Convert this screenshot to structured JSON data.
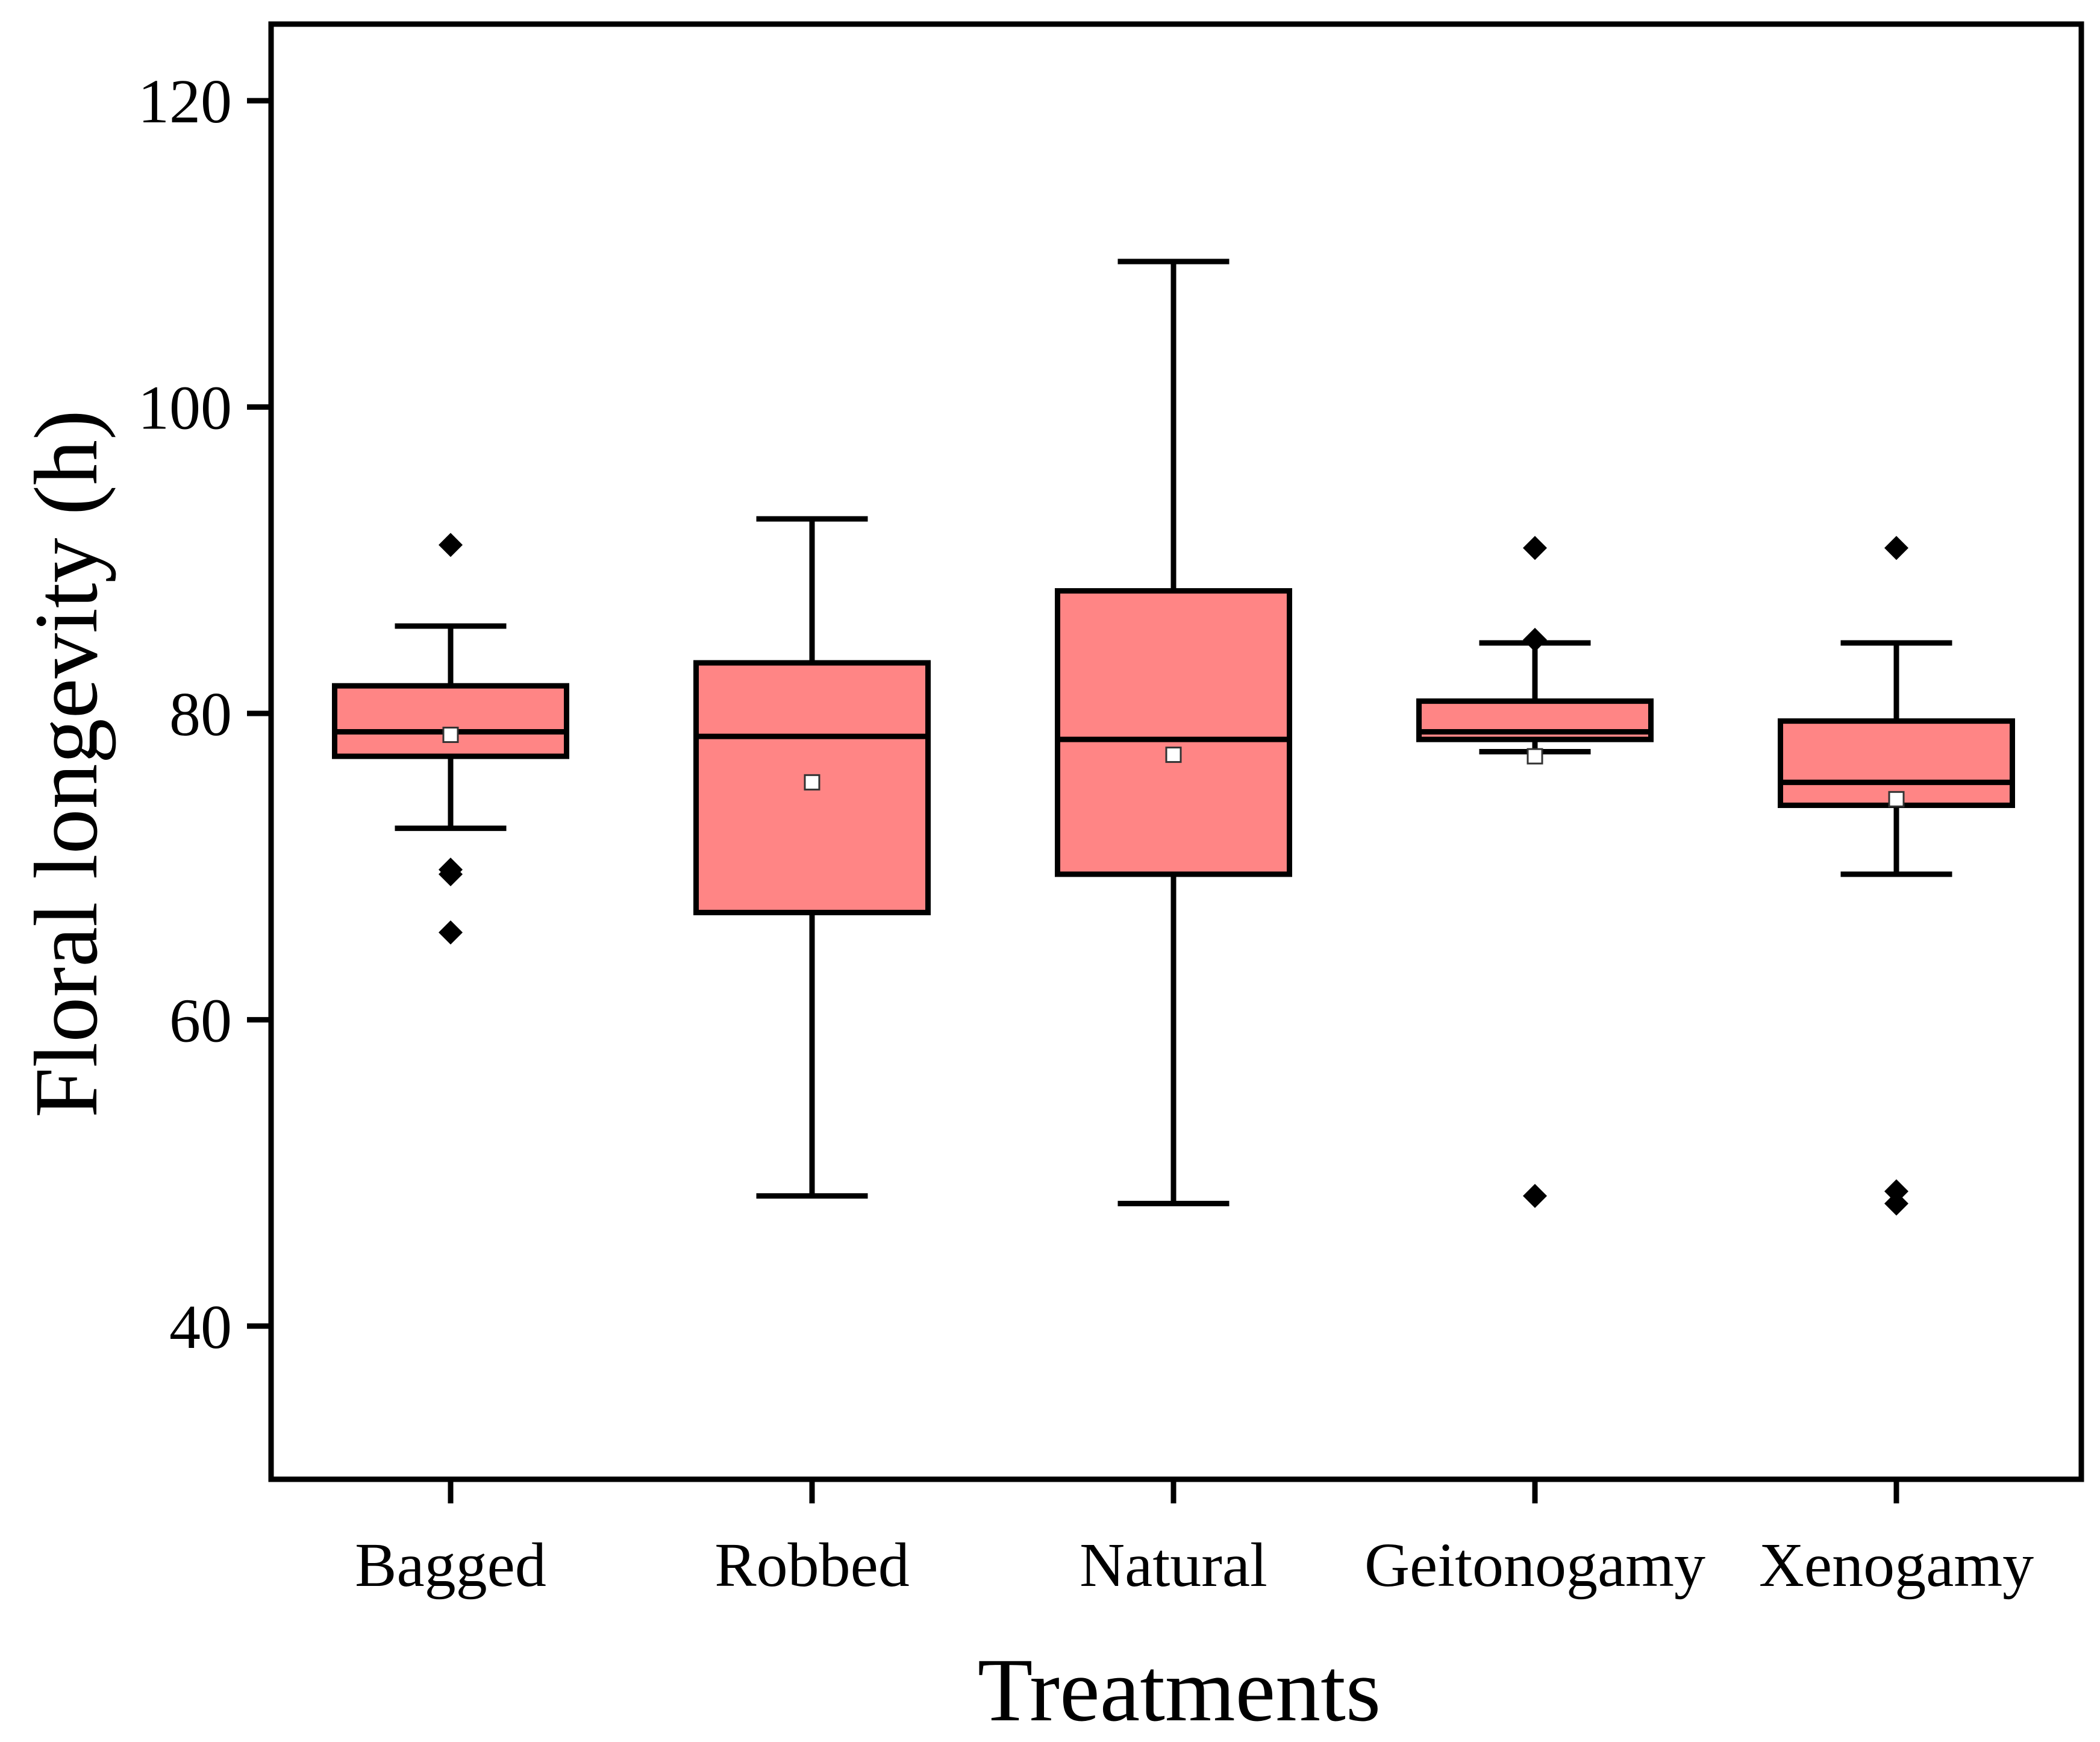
{
  "chart_data": {
    "type": "box",
    "title": "",
    "xlabel": "Treatments",
    "ylabel": "Floral longevity (h)",
    "ylim": [
      30,
      125
    ],
    "yticks": [
      40,
      60,
      80,
      100,
      120
    ],
    "grid": false,
    "legend": "none",
    "box_color": "#FF8585",
    "line_color": "#000000",
    "categories": [
      "Bagged",
      "Robbed",
      "Natural",
      "Geitonogamy",
      "Xenogamy"
    ],
    "series": [
      {
        "name": "Bagged",
        "whisker_low": 72.5,
        "q1": 77.2,
        "median": 78.8,
        "q3": 81.8,
        "whisker_high": 85.7,
        "mean": 78.6,
        "outliers": [
          91.0,
          69.8,
          69.5,
          65.7
        ]
      },
      {
        "name": "Robbed",
        "whisker_low": 48.5,
        "q1": 67.0,
        "median": 78.5,
        "q3": 83.3,
        "whisker_high": 92.7,
        "mean": 75.5,
        "outliers": []
      },
      {
        "name": "Natural",
        "whisker_low": 48.0,
        "q1": 69.5,
        "median": 78.3,
        "q3": 88.0,
        "whisker_high": 109.5,
        "mean": 77.3,
        "outliers": []
      },
      {
        "name": "Geitonogamy",
        "whisker_low": 77.5,
        "q1": 78.3,
        "median": 78.8,
        "q3": 80.8,
        "whisker_high": 84.6,
        "mean": 77.2,
        "outliers": [
          90.8,
          84.8,
          48.5
        ]
      },
      {
        "name": "Xenogamy",
        "whisker_low": 69.5,
        "q1": 74.0,
        "median": 75.5,
        "q3": 79.5,
        "whisker_high": 84.6,
        "mean": 74.4,
        "outliers": [
          90.8,
          48.8,
          48.0
        ]
      }
    ]
  }
}
